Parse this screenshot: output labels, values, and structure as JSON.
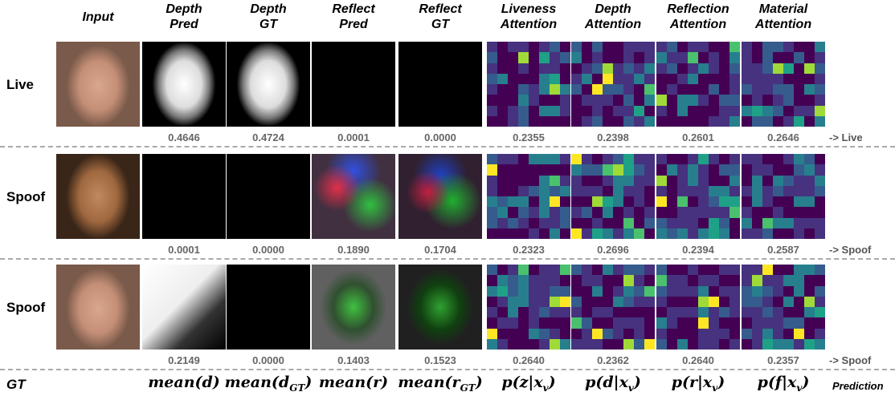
{
  "headers": [
    [
      "Input"
    ],
    [
      "Depth",
      "Pred"
    ],
    [
      "Depth",
      "GT"
    ],
    [
      "Reflect",
      "Pred"
    ],
    [
      "Reflect",
      "GT"
    ],
    [
      "Liveness",
      "Attention"
    ],
    [
      "Depth",
      "Attention"
    ],
    [
      "Reflection",
      "Attention"
    ],
    [
      "Material",
      "Attention"
    ]
  ],
  "rows": [
    {
      "label": "Live",
      "values": [
        "0.4646",
        "0.4724",
        "0.0001",
        "0.0000",
        "0.2355",
        "0.2398",
        "0.2601",
        "0.2646"
      ],
      "prediction": "-> Live"
    },
    {
      "label": "Spoof",
      "values": [
        "0.0001",
        "0.0000",
        "0.1890",
        "0.1704",
        "0.2323",
        "0.2696",
        "0.2394",
        "0.2587"
      ],
      "prediction": "-> Spoof"
    },
    {
      "label": "Spoof",
      "values": [
        "0.2149",
        "0.0000",
        "0.1403",
        "0.1523",
        "0.2640",
        "0.2362",
        "0.2640",
        "0.2357"
      ],
      "prediction": "-> Spoof"
    }
  ],
  "footer": {
    "label": "GT",
    "formulas": [
      {
        "base": "mean(d)"
      },
      {
        "base": "mean(d",
        "sub": "GT",
        "tail": ")"
      },
      {
        "base": "mean(r)"
      },
      {
        "base": "mean(r",
        "sub": "GT",
        "tail": ")"
      },
      {
        "base": "p(z|x",
        "sub": "v",
        "tail": ")"
      },
      {
        "base": "p(d|x",
        "sub": "v",
        "tail": ")"
      },
      {
        "base": "p(r|x",
        "sub": "v",
        "tail": ")"
      },
      {
        "base": "p(f|x",
        "sub": "v",
        "tail": ")"
      }
    ],
    "prediction": "Prediction"
  }
}
